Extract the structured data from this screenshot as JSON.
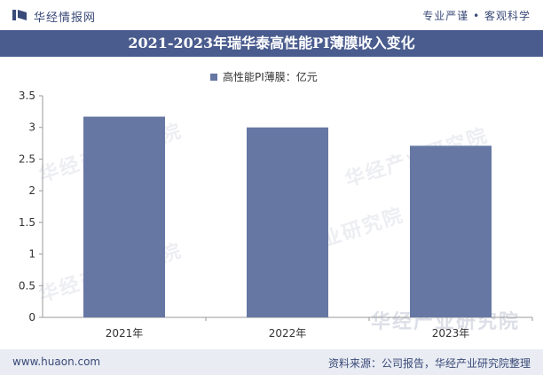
{
  "header": {
    "brand": "华经情报网",
    "slogan": "专业严谨 • 客观科学"
  },
  "title": "2021-2023年瑞华泰高性能PI薄膜收入变化",
  "legend_label": "高性能PI薄膜：亿元",
  "watermark": "华经产业研究院",
  "footer": {
    "site": "www.huaon.com",
    "source": "资料来源：公司报告，华经产业研究院整理"
  },
  "colors": {
    "bar": "#6677a3",
    "title_bg": "#4a5c8e",
    "footer_bg": "#e9ecf3"
  },
  "chart_data": {
    "type": "bar",
    "categories": [
      "2021年",
      "2022年",
      "2023年"
    ],
    "series": [
      {
        "name": "高性能PI薄膜：亿元",
        "values": [
          3.17,
          3.0,
          2.71
        ]
      }
    ],
    "ylim": [
      0,
      3.5
    ],
    "yticks": [
      "0",
      "0.5",
      "1",
      "1.5",
      "2",
      "2.5",
      "3",
      "3.5"
    ],
    "grid": false,
    "legend": "top-center"
  }
}
